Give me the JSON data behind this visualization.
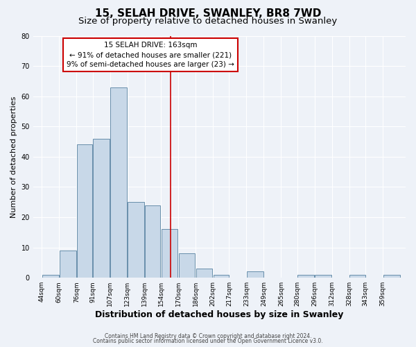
{
  "title": "15, SELAH DRIVE, SWANLEY, BR8 7WD",
  "subtitle": "Size of property relative to detached houses in Swanley",
  "xlabel": "Distribution of detached houses by size in Swanley",
  "ylabel": "Number of detached properties",
  "bin_labels": [
    "44sqm",
    "60sqm",
    "76sqm",
    "91sqm",
    "107sqm",
    "123sqm",
    "139sqm",
    "154sqm",
    "170sqm",
    "186sqm",
    "202sqm",
    "217sqm",
    "233sqm",
    "249sqm",
    "265sqm",
    "280sqm",
    "296sqm",
    "312sqm",
    "328sqm",
    "343sqm",
    "359sqm"
  ],
  "bin_edges": [
    44,
    60,
    76,
    91,
    107,
    123,
    139,
    154,
    170,
    186,
    202,
    217,
    233,
    249,
    265,
    280,
    296,
    312,
    328,
    343,
    359,
    375
  ],
  "bar_heights": [
    1,
    9,
    44,
    46,
    63,
    25,
    24,
    16,
    8,
    3,
    1,
    0,
    2,
    0,
    0,
    1,
    1,
    0,
    1,
    0,
    1
  ],
  "bar_color": "#c8d8e8",
  "bar_edge_color": "#5580a0",
  "vline_x": 163,
  "vline_color": "#cc0000",
  "annotation_title": "15 SELAH DRIVE: 163sqm",
  "annotation_line1": "← 91% of detached houses are smaller (221)",
  "annotation_line2": "9% of semi-detached houses are larger (23) →",
  "annotation_box_color": "#cc0000",
  "ylim": [
    0,
    80
  ],
  "yticks": [
    0,
    10,
    20,
    30,
    40,
    50,
    60,
    70,
    80
  ],
  "footer1": "Contains HM Land Registry data © Crown copyright and database right 2024.",
  "footer2": "Contains public sector information licensed under the Open Government Licence v3.0.",
  "bg_color": "#eef2f8",
  "grid_color": "#ffffff",
  "title_fontsize": 11,
  "subtitle_fontsize": 9.5,
  "xlabel_fontsize": 9,
  "ylabel_fontsize": 8,
  "tick_fontsize": 6.5,
  "annotation_fontsize": 7.5,
  "footer_fontsize": 5.5
}
